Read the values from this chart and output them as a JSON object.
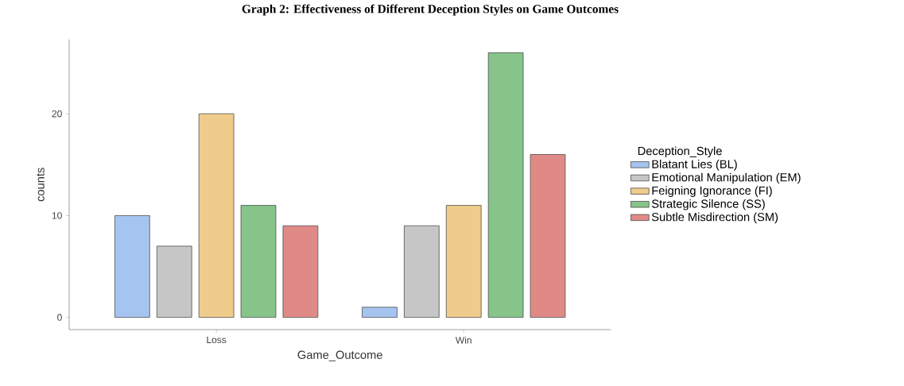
{
  "chart_data": {
    "type": "bar",
    "title": "Graph 2: Effectiveness of Different Deception Styles on Game Outcomes",
    "xlabel": "Game_Outcome",
    "ylabel": "counts",
    "legend_title": "Deception_Style",
    "categories": [
      "Loss",
      "Win"
    ],
    "series": [
      {
        "name": "Blatant Lies (BL)",
        "color": "#a6c4f0",
        "values": [
          10,
          1
        ]
      },
      {
        "name": "Emotional Manipulation (EM)",
        "color": "#c6c6c6",
        "values": [
          7,
          9
        ]
      },
      {
        "name": "Feigning Ignorance (FI)",
        "color": "#f0cc8c",
        "values": [
          20,
          11
        ]
      },
      {
        "name": "Strategic Silence (SS)",
        "color": "#86c48a",
        "values": [
          11,
          26
        ]
      },
      {
        "name": "Subtle Misdirection (SM)",
        "color": "#e08a88",
        "values": [
          9,
          16
        ]
      }
    ],
    "ylim": [
      -1.2,
      27.3
    ],
    "yticks": [
      0,
      10,
      20
    ],
    "grid": false,
    "legend": "right"
  }
}
